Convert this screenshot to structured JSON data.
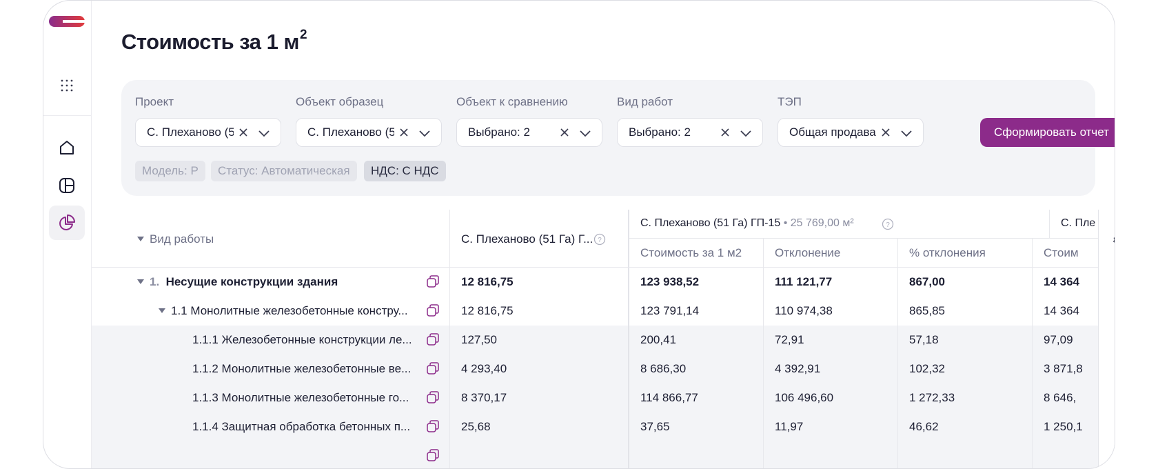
{
  "page": {
    "title": "Стоимость за 1 м",
    "title_sup": "2"
  },
  "filters": {
    "project": {
      "label": "Проект",
      "value": "С. Плеханово (5"
    },
    "sample": {
      "label": "Объект образец",
      "value": "С. Плеханово (5"
    },
    "compare": {
      "label": "Объект к сравнению",
      "value": "Выбрано: 2"
    },
    "work_type": {
      "label": "Вид работ",
      "value": "Выбрано: 2"
    },
    "tep": {
      "label": "ТЭП",
      "value": "Общая продава"
    },
    "submit_label": "Сформировать отчет",
    "chips": [
      {
        "label": "Модель: Р",
        "state": "disabled"
      },
      {
        "label": "Статус: Автоматическая",
        "state": "disabled"
      },
      {
        "label": "НДС: С НДС",
        "state": "active"
      }
    ]
  },
  "table": {
    "first_header": "Вид работы",
    "sample_header": "С. Плеханово (51 Га) Г...",
    "group1": {
      "name": "С. Плеханово (51 Га) ГП-15",
      "meta": " • 25 769,00 м²"
    },
    "group2": {
      "name": "С. Пле"
    },
    "sub_headers": [
      "Стоимость за 1 м2",
      "Отклонение",
      "% отклонения",
      "Стоим"
    ],
    "rows": [
      {
        "num": "1.",
        "name": "Несущие конструкции здания",
        "c1": "12 816,75",
        "c2": "123 938,52",
        "c3": "111 121,77",
        "c4": "867,00",
        "c5": "14 364"
      },
      {
        "name": "1.1 Монолитные железобетонные констру...",
        "c1": "12 816,75",
        "c2": "123 791,14",
        "c3": "110 974,38",
        "c4": "865,85",
        "c5": "14 364"
      },
      {
        "name": "1.1.1 Железобетонные конструкции ле...",
        "c1": "127,50",
        "c2": "200,41",
        "c3": "72,91",
        "c4": "57,18",
        "c5": "97,09"
      },
      {
        "name": "1.1.2 Монолитные железобетонные ве...",
        "c1": "4 293,40",
        "c2": "8 686,30",
        "c3": "4 392,91",
        "c4": "102,32",
        "c5": "3 871,8"
      },
      {
        "name": "1.1.3 Монолитные железобетонные го...",
        "c1": "8 370,17",
        "c2": "114 866,77",
        "c3": "106 496,60",
        "c4": "1 272,33",
        "c5": "8 646,"
      },
      {
        "name": "1.1.4 Защитная обработка бетонных п...",
        "c1": "25,68",
        "c2": "37,65",
        "c3": "11,97",
        "c4": "46,62",
        "c5": "1 250,1"
      }
    ]
  },
  "colors": {
    "accent": "#8c2b8a",
    "panel": "#f3f4f7"
  },
  "icons": [
    "logo",
    "apps-grid-icon",
    "home-icon",
    "layout-icon",
    "pie-chart-icon",
    "clear-icon",
    "chevron-down-icon",
    "help-icon",
    "copy-icon",
    "gear-icon"
  ]
}
